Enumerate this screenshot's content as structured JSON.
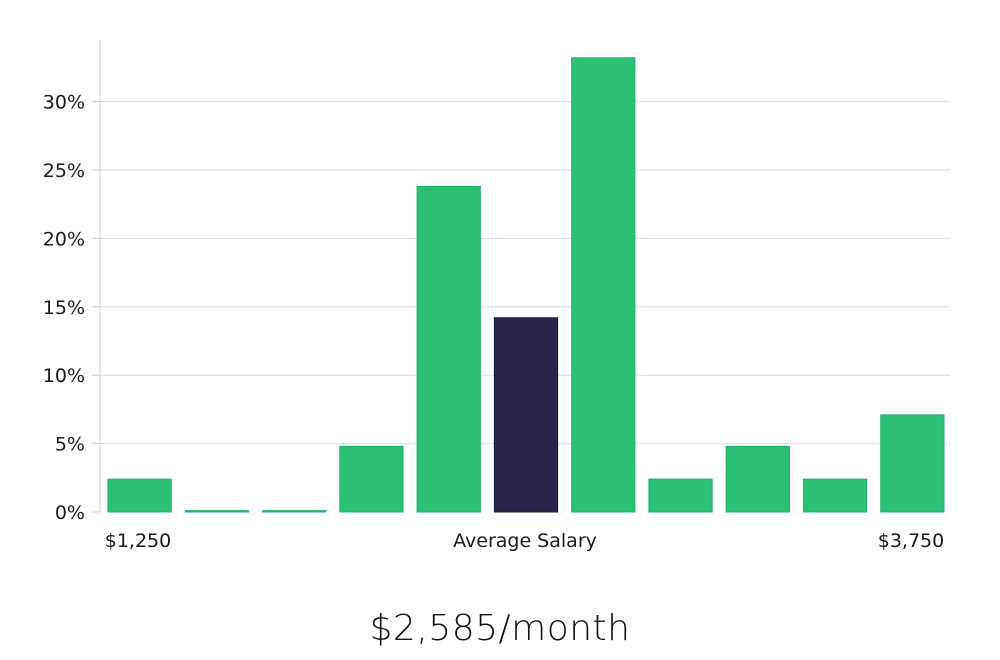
{
  "chart_data": {
    "type": "bar",
    "ylim": [
      0,
      34.5
    ],
    "yticks": [
      0,
      5,
      10,
      15,
      20,
      25,
      30
    ],
    "ytick_suffix": "%",
    "grid": true,
    "values": [
      2.4,
      0.1,
      0.1,
      4.8,
      23.8,
      14.2,
      33.2,
      2.4,
      4.8,
      2.4,
      7.1
    ],
    "highlight_index": 5,
    "x_labels": {
      "left": "$1,250",
      "center": "Average Salary",
      "right": "$3,750"
    },
    "colors": {
      "bar": "#2bbf78",
      "highlight": "#272447",
      "grid": "#dddddd",
      "axis": "#cccccc"
    }
  },
  "headline": "$2,585/month"
}
